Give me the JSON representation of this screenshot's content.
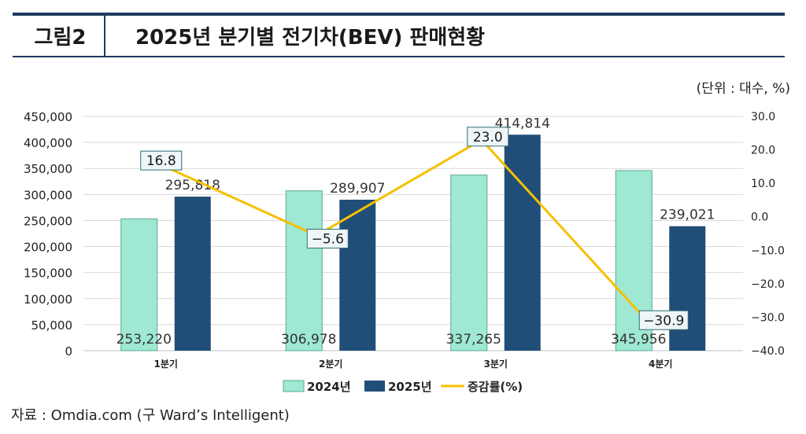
{
  "header": {
    "figure_label": "그림2",
    "title": "2025년 분기별 전기차(BEV) 판매현황"
  },
  "unit_note": "(단위 : 대수, %)",
  "source": "자료 : Omdia.com (구 Ward’s Intelligent)",
  "colors": {
    "series_2024": "#9fe8d3",
    "series_2024_stroke": "#5aa98e",
    "series_2025": "#214e78",
    "growth_line": "#f5c000",
    "rule": "#1f3a5f"
  },
  "chart_data": {
    "type": "bar+line",
    "categories": [
      "1분기",
      "2분기",
      "3분기",
      "4분기"
    ],
    "series": [
      {
        "name": "2024년",
        "type": "bar",
        "axis": "left",
        "values": [
          253220,
          306978,
          337265,
          345956
        ],
        "labels": [
          "253,220",
          "306,978",
          "337,265",
          "345,956"
        ]
      },
      {
        "name": "2025년",
        "type": "bar",
        "axis": "left",
        "values": [
          295818,
          289907,
          414814,
          239021
        ],
        "labels": [
          "295,818",
          "289,907",
          "414,814",
          "239,021"
        ]
      },
      {
        "name": "증감률(%)",
        "type": "line",
        "axis": "right",
        "values": [
          16.8,
          -5.6,
          23.0,
          -30.9
        ],
        "labels": [
          "16.8",
          "−5.6",
          "23.0",
          "−30.9"
        ]
      }
    ],
    "left_axis": {
      "min": 0,
      "max": 450000,
      "step": 50000,
      "ticks": [
        "0",
        "50,000",
        "100,000",
        "150,000",
        "200,000",
        "250,000",
        "300,000",
        "350,000",
        "400,000",
        "450,000"
      ]
    },
    "right_axis": {
      "min": -40,
      "max": 30,
      "step": 10,
      "ticks": [
        "−40.0",
        "−30.0",
        "−20.0",
        "−10.0",
        "0.0",
        "10.0",
        "20.0",
        "30.0"
      ]
    },
    "gridlines": true,
    "legend": {
      "position": "bottom",
      "items": [
        "2024년",
        "2025년",
        "증감률(%)"
      ]
    }
  }
}
